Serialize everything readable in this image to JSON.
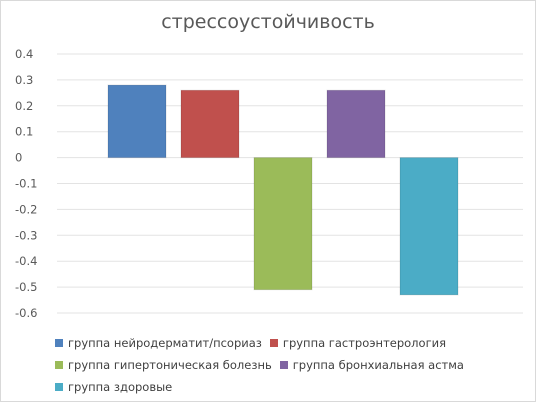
{
  "chart_data": {
    "type": "bar",
    "title": "стрессоустойчивость",
    "xlabel": "",
    "ylabel": "",
    "ylim": [
      -0.6,
      0.4
    ],
    "yticks": [
      0.4,
      0.3,
      0.2,
      0.1,
      0,
      -0.1,
      -0.2,
      -0.3,
      -0.4,
      -0.5,
      -0.6
    ],
    "grid": true,
    "legend_position": "bottom",
    "series": [
      {
        "name": "группа нейродерматит/псориаз",
        "value": 0.28,
        "color": "#4f81bd"
      },
      {
        "name": "группа гастроэнтерология",
        "value": 0.26,
        "color": "#c0504d"
      },
      {
        "name": "группа гипертоническая болезнь",
        "value": -0.51,
        "color": "#9bbb59"
      },
      {
        "name": "группа бронхиальная астма",
        "value": 0.26,
        "color": "#8064a2"
      },
      {
        "name": "группа здоровые",
        "value": -0.53,
        "color": "#4bacc6"
      }
    ]
  }
}
